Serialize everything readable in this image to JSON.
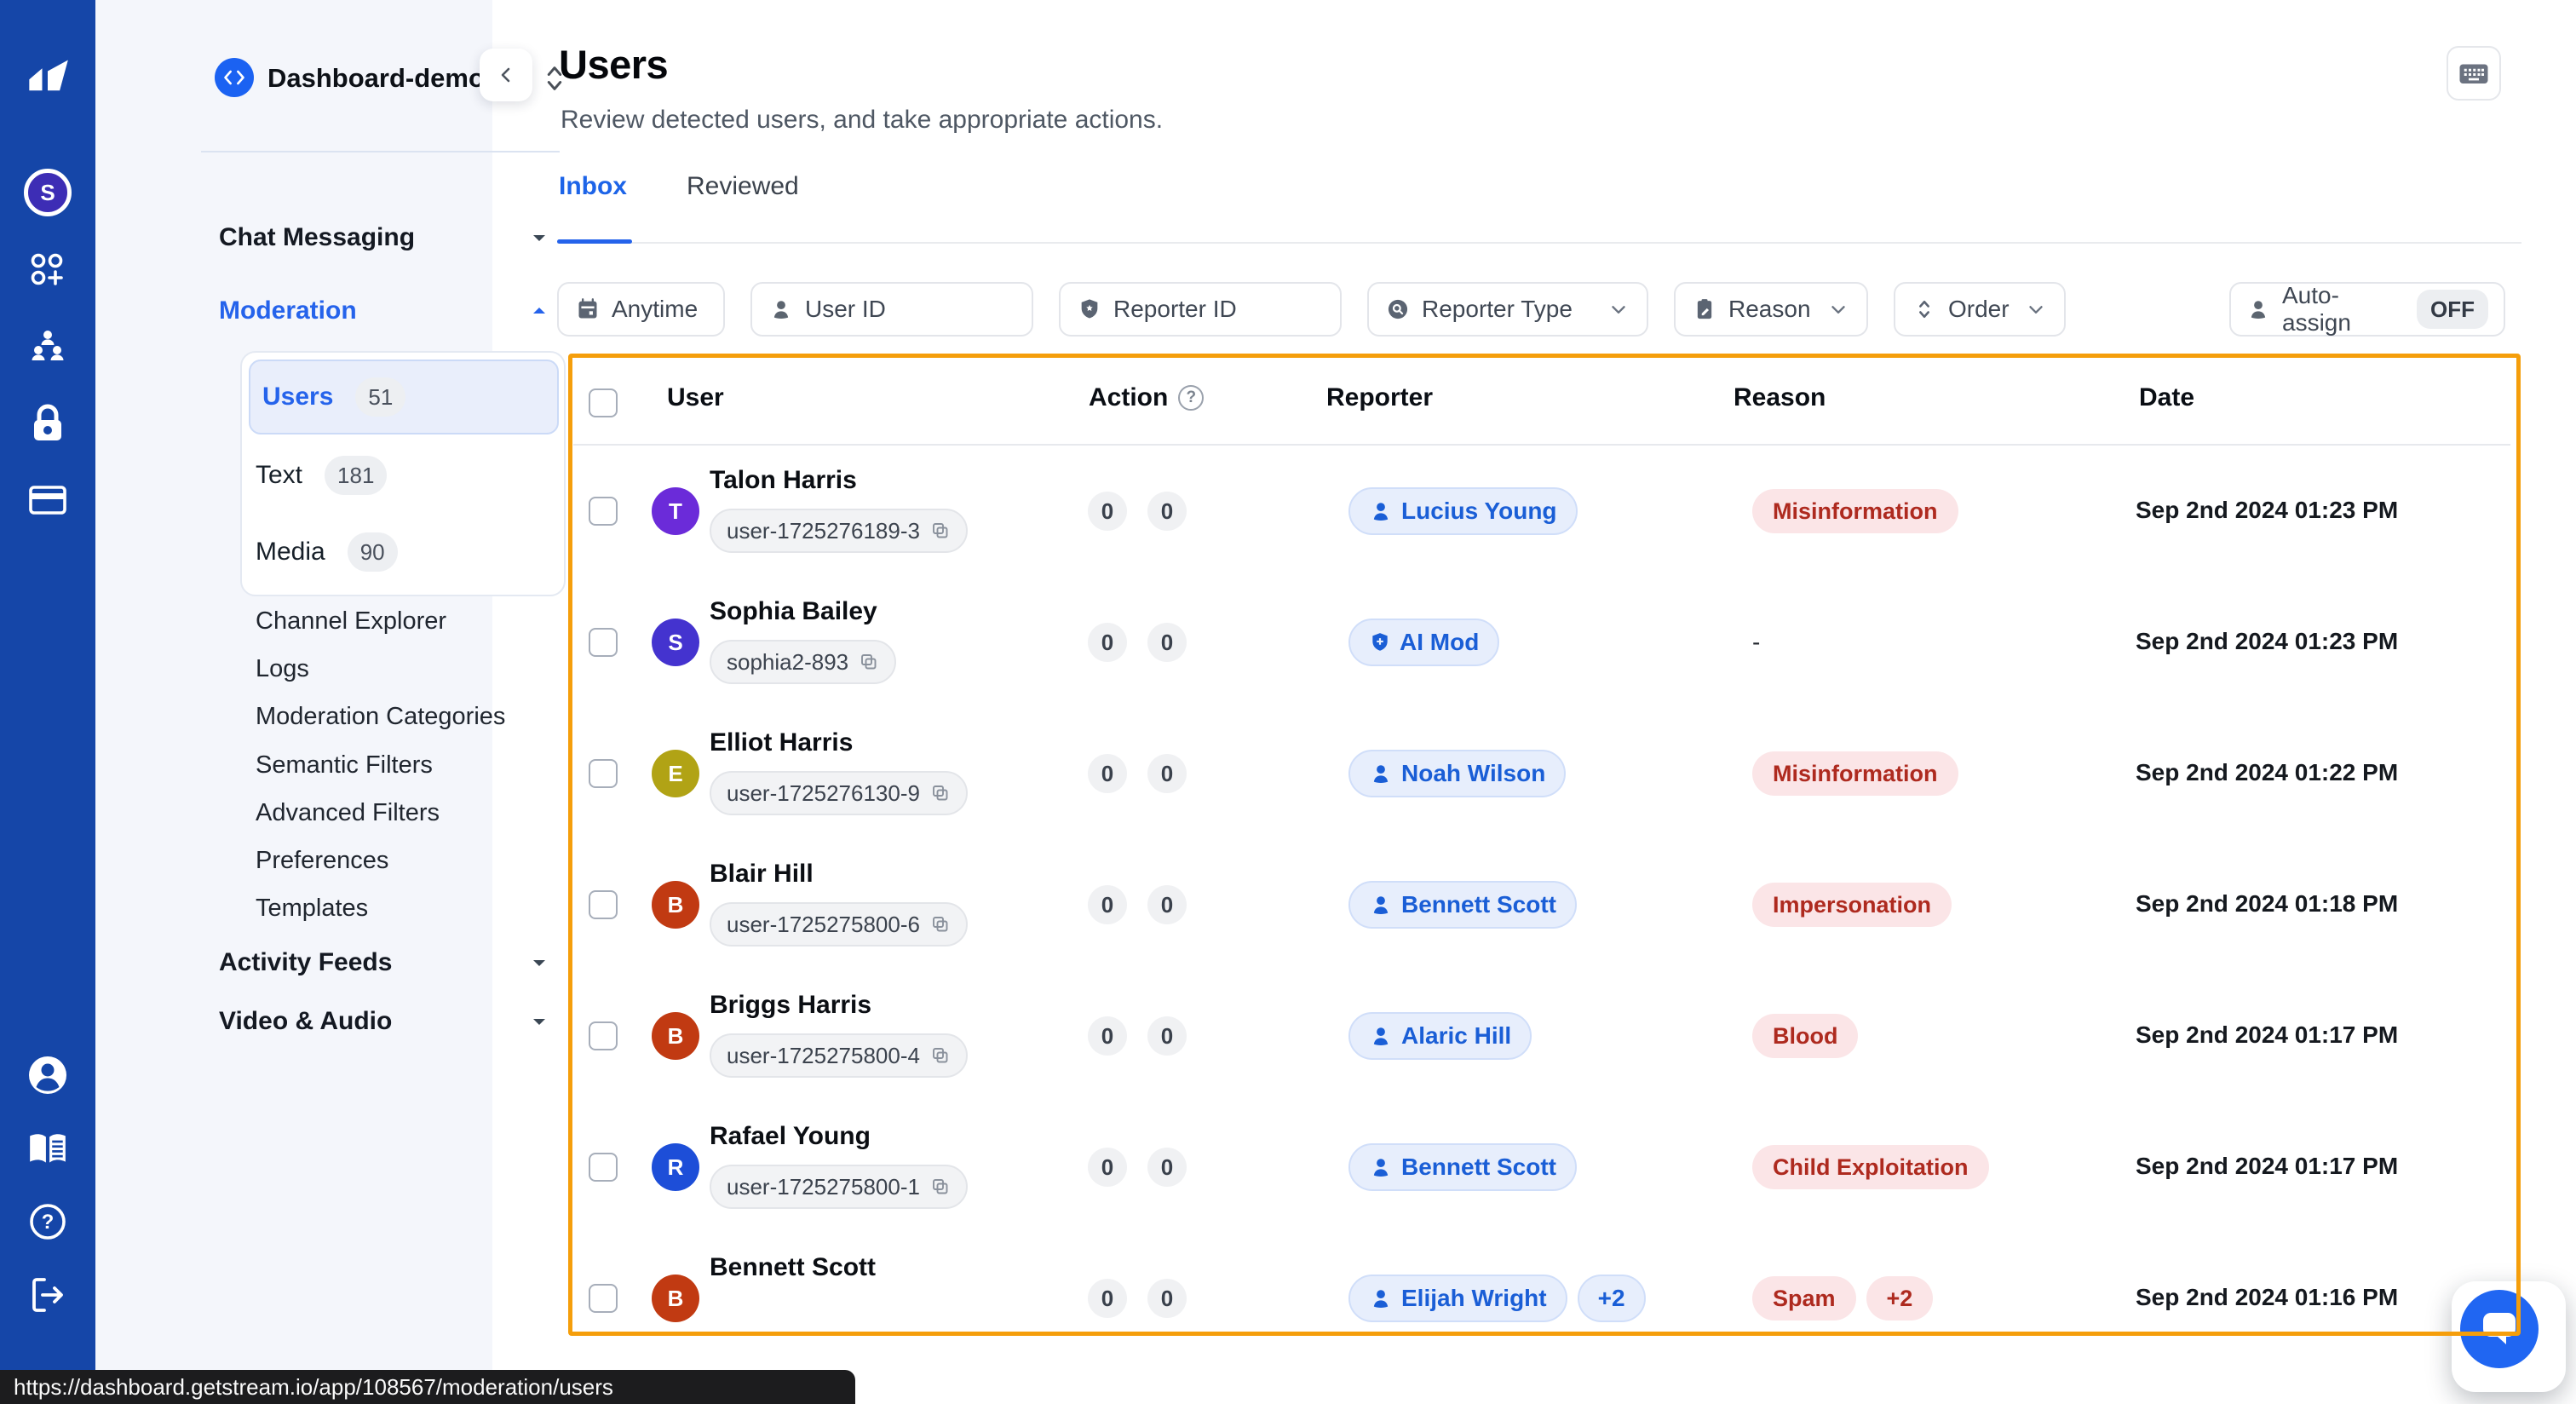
{
  "rail": {
    "org_avatar_initial": "S",
    "icons": [
      "org-avatar",
      "apps",
      "team",
      "security",
      "billing",
      "account",
      "docs",
      "help",
      "logout"
    ]
  },
  "sidebar": {
    "app_name": "Dashboard-demo",
    "sections": {
      "chat_messaging": "Chat Messaging",
      "moderation": "Moderation",
      "activity_feeds": "Activity Feeds",
      "video_audio": "Video & Audio"
    },
    "moderation_items": [
      {
        "label": "Users",
        "count": "51",
        "selected": true
      },
      {
        "label": "Text",
        "count": "181",
        "selected": false
      },
      {
        "label": "Media",
        "count": "90",
        "selected": false
      }
    ],
    "moderation_links": [
      "Channel Explorer",
      "Logs",
      "Moderation Categories",
      "Semantic Filters",
      "Advanced Filters",
      "Preferences",
      "Templates"
    ]
  },
  "header": {
    "title": "Users",
    "subtitle": "Review detected users, and take appropriate actions.",
    "tabs": [
      {
        "label": "Inbox",
        "active": true
      },
      {
        "label": "Reviewed",
        "active": false
      }
    ]
  },
  "filters": {
    "items": [
      {
        "id": "date",
        "icon": "calendar",
        "label": "Anytime",
        "chevron": false
      },
      {
        "id": "user-id",
        "icon": "person",
        "label": "User ID",
        "chevron": false
      },
      {
        "id": "reporter-id",
        "icon": "shield-star",
        "label": "Reporter ID",
        "chevron": false
      },
      {
        "id": "reporter-type",
        "icon": "badge-search",
        "label": "Reporter Type",
        "chevron": true
      },
      {
        "id": "reason",
        "icon": "clipboard",
        "label": "Reason",
        "chevron": true
      },
      {
        "id": "order",
        "icon": "sort",
        "label": "Order",
        "chevron": true
      }
    ],
    "auto_assign": {
      "label": "Auto-assign",
      "state": "OFF"
    }
  },
  "table": {
    "columns": {
      "user": "User",
      "action": "Action",
      "reporter": "Reporter",
      "reason": "Reason",
      "date": "Date"
    },
    "accent_border_color": "#F59E0B",
    "rows": [
      {
        "name": "Talon Harris",
        "initial": "T",
        "avatar_color": "#6B2BD9",
        "user_id": "user-1725276189-3",
        "flags": "0",
        "actions": "0",
        "reporters": [
          {
            "label": "Lucius Young",
            "icon": "person"
          }
        ],
        "reasons": [
          "Misinformation"
        ],
        "date": "Sep 2nd 2024 01:23 PM"
      },
      {
        "name": "Sophia Bailey",
        "initial": "S",
        "avatar_color": "#4433CF",
        "user_id": "sophia2-893",
        "flags": "0",
        "actions": "0",
        "reporters": [
          {
            "label": "AI Mod",
            "icon": "shield"
          }
        ],
        "reasons": null,
        "reason_dash": "-",
        "date": "Sep 2nd 2024 01:23 PM"
      },
      {
        "name": "Elliot Harris",
        "initial": "E",
        "avatar_color": "#B1A315",
        "user_id": "user-1725276130-9",
        "flags": "0",
        "actions": "0",
        "reporters": [
          {
            "label": "Noah Wilson",
            "icon": "person"
          }
        ],
        "reasons": [
          "Misinformation"
        ],
        "date": "Sep 2nd 2024 01:22 PM"
      },
      {
        "name": "Blair Hill",
        "initial": "B",
        "avatar_color": "#C13A12",
        "user_id": "user-1725275800-6",
        "flags": "0",
        "actions": "0",
        "reporters": [
          {
            "label": "Bennett Scott",
            "icon": "person"
          }
        ],
        "reasons": [
          "Impersonation"
        ],
        "date": "Sep 2nd 2024 01:18 PM"
      },
      {
        "name": "Briggs Harris",
        "initial": "B",
        "avatar_color": "#C13A12",
        "user_id": "user-1725275800-4",
        "flags": "0",
        "actions": "0",
        "reporters": [
          {
            "label": "Alaric Hill",
            "icon": "person"
          }
        ],
        "reasons": [
          "Blood"
        ],
        "date": "Sep 2nd 2024 01:17 PM"
      },
      {
        "name": "Rafael Young",
        "initial": "R",
        "avatar_color": "#1D4ED8",
        "user_id": "user-1725275800-1",
        "flags": "0",
        "actions": "0",
        "reporters": [
          {
            "label": "Bennett Scott",
            "icon": "person"
          }
        ],
        "reasons": [
          "Child Exploitation"
        ],
        "date": "Sep 2nd 2024 01:17 PM"
      },
      {
        "name": "Bennett Scott",
        "initial": "B",
        "avatar_color": "#C13A12",
        "user_id": null,
        "flags": "0",
        "actions": "0",
        "reporters": [
          {
            "label": "Elijah Wright",
            "icon": "person"
          },
          {
            "label": "+2"
          }
        ],
        "reasons": [
          "Spam",
          "+2"
        ],
        "date": "Sep 2nd 2024 01:16 PM"
      }
    ]
  },
  "statusbar": {
    "url": "https://dashboard.getstream.io/app/108567/moderation/users"
  }
}
